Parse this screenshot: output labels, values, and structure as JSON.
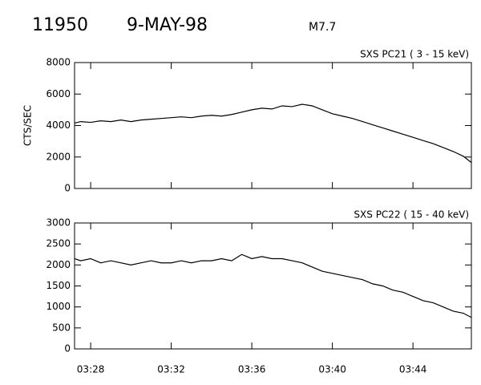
{
  "header": {
    "event": "11950",
    "date": "9-MAY-98",
    "class": "M7.7"
  },
  "chart_data": [
    {
      "type": "line",
      "subtitle": "SXS PC21  (  3 - 15 keV)",
      "ylabel": "CTS/SEC",
      "color": "#000000",
      "xlim": [
        207.2,
        226.9
      ],
      "ylim": [
        0,
        8000
      ],
      "yticks": [
        0,
        2000,
        4000,
        6000,
        8000
      ],
      "x": [
        207.2,
        207.5,
        208,
        208.5,
        209,
        209.5,
        210,
        210.5,
        211,
        211.5,
        212,
        212.5,
        213,
        213.5,
        214,
        214.5,
        215,
        215.5,
        216,
        216.5,
        217,
        217.5,
        218,
        218.5,
        219,
        219.5,
        220,
        220.5,
        221,
        221.5,
        222,
        222.5,
        223,
        223.5,
        224,
        224.5,
        225,
        225.5,
        226,
        226.5,
        226.9
      ],
      "values": [
        4150,
        4250,
        4200,
        4300,
        4250,
        4350,
        4250,
        4350,
        4400,
        4450,
        4500,
        4550,
        4500,
        4600,
        4650,
        4600,
        4700,
        4850,
        5000,
        5100,
        5050,
        5250,
        5200,
        5350,
        5250,
        5000,
        4750,
        4600,
        4450,
        4250,
        4050,
        3850,
        3650,
        3450,
        3250,
        3050,
        2850,
        2600,
        2350,
        2050,
        1650
      ]
    },
    {
      "type": "line",
      "subtitle": "SXS PC22  ( 15 - 40 keV)",
      "color": "#000000",
      "xlim": [
        207.2,
        226.9
      ],
      "ylim": [
        0,
        3000
      ],
      "yticks": [
        0,
        500,
        1000,
        1500,
        2000,
        2500,
        3000
      ],
      "xticks": [
        {
          "value": 208,
          "label": "03:28"
        },
        {
          "value": 212,
          "label": "03:32"
        },
        {
          "value": 216,
          "label": "03:36"
        },
        {
          "value": 220,
          "label": "03:40"
        },
        {
          "value": 224,
          "label": "03:44"
        }
      ],
      "x": [
        207.2,
        207.5,
        208,
        208.5,
        209,
        209.5,
        210,
        210.5,
        211,
        211.5,
        212,
        212.5,
        213,
        213.5,
        214,
        214.5,
        215,
        215.5,
        216,
        216.5,
        217,
        217.5,
        218,
        218.5,
        219,
        219.5,
        220,
        220.5,
        221,
        221.5,
        222,
        222.5,
        223,
        223.5,
        224,
        224.5,
        225,
        225.5,
        226,
        226.5,
        226.9
      ],
      "values": [
        2150,
        2100,
        2150,
        2050,
        2100,
        2050,
        2000,
        2050,
        2100,
        2050,
        2050,
        2100,
        2050,
        2100,
        2100,
        2150,
        2100,
        2250,
        2150,
        2200,
        2150,
        2150,
        2100,
        2050,
        1950,
        1850,
        1800,
        1750,
        1700,
        1650,
        1550,
        1500,
        1400,
        1350,
        1250,
        1150,
        1100,
        1000,
        900,
        850,
        750
      ]
    }
  ]
}
